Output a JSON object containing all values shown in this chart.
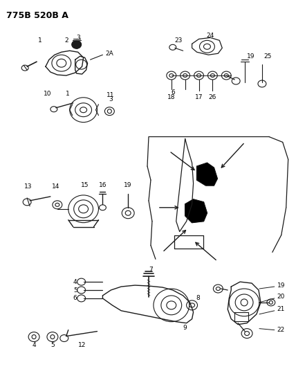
{
  "title": "775B 520B A",
  "bg_color": "#ffffff",
  "line_color": "#1a1a1a",
  "fig_width": 4.28,
  "fig_height": 5.33,
  "dpi": 100
}
